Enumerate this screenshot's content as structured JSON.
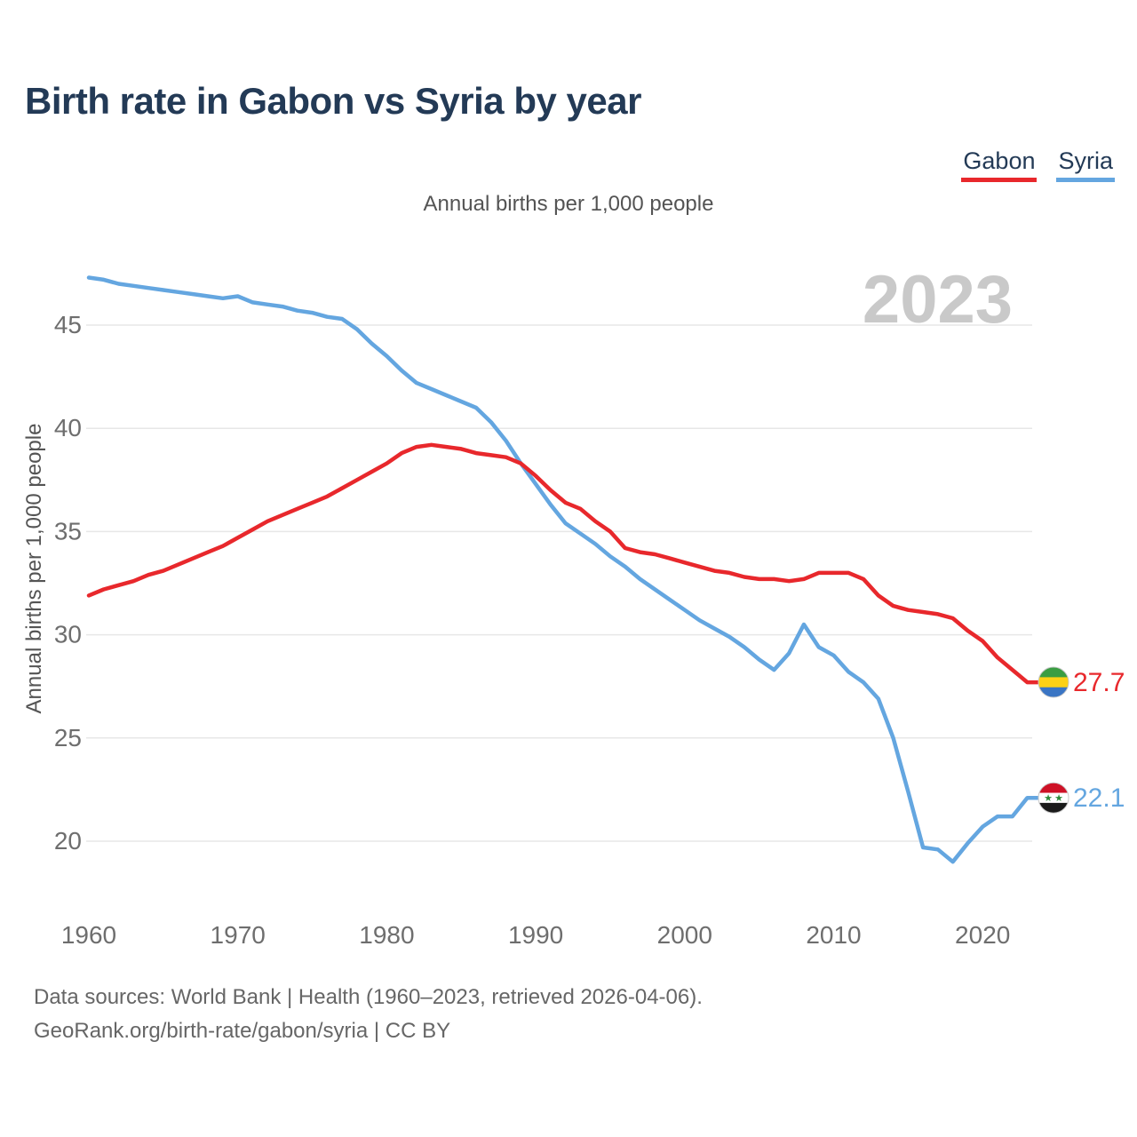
{
  "header": {
    "title": "Birth rate in Gabon vs Syria by year"
  },
  "legend": [
    {
      "label": "Gabon",
      "color": "#e8282c"
    },
    {
      "label": "Syria",
      "color": "#64a6e0"
    }
  ],
  "chart": {
    "subtitle": "Annual births per 1,000 people",
    "watermark": "2023"
  },
  "chart_data": {
    "type": "line",
    "title": "Birth rate in Gabon vs Syria by year",
    "subtitle": "Annual births per 1,000 people",
    "ylabel": "Annual births per 1,000 people",
    "xlabel": "",
    "grid": true,
    "legend_position": "top-right",
    "watermark": "2023",
    "ylim": [
      15,
      49.5
    ],
    "yticks": [
      20,
      25,
      30,
      35,
      40,
      45
    ],
    "xticks": [
      1960,
      1970,
      1980,
      1990,
      2000,
      2010,
      2020
    ],
    "x": [
      1960,
      1961,
      1962,
      1963,
      1964,
      1965,
      1966,
      1967,
      1968,
      1969,
      1970,
      1971,
      1972,
      1973,
      1974,
      1975,
      1976,
      1977,
      1978,
      1979,
      1980,
      1981,
      1982,
      1983,
      1984,
      1985,
      1986,
      1987,
      1988,
      1989,
      1990,
      1991,
      1992,
      1993,
      1994,
      1995,
      1996,
      1997,
      1998,
      1999,
      2000,
      2001,
      2002,
      2003,
      2004,
      2005,
      2006,
      2007,
      2008,
      2009,
      2010,
      2011,
      2012,
      2013,
      2014,
      2015,
      2016,
      2017,
      2018,
      2019,
      2020,
      2021,
      2022,
      2023
    ],
    "series": [
      {
        "name": "Gabon",
        "color": "#e8282c",
        "end_label": "27.7",
        "flag": {
          "type": "stripes",
          "colors": [
            "#3a9d42",
            "#fcd116",
            "#3a75c4"
          ]
        },
        "values": [
          31.9,
          32.2,
          32.4,
          32.6,
          32.9,
          33.1,
          33.4,
          33.7,
          34.0,
          34.3,
          34.7,
          35.1,
          35.5,
          35.8,
          36.1,
          36.4,
          36.7,
          37.1,
          37.5,
          37.9,
          38.3,
          38.8,
          39.1,
          39.2,
          39.1,
          39.0,
          38.8,
          38.7,
          38.6,
          38.3,
          37.7,
          37.0,
          36.4,
          36.1,
          35.5,
          35.0,
          34.2,
          34.0,
          33.9,
          33.7,
          33.5,
          33.3,
          33.1,
          33.0,
          32.8,
          32.7,
          32.7,
          32.6,
          32.7,
          33.0,
          33.0,
          33.0,
          32.7,
          31.9,
          31.4,
          31.2,
          31.1,
          31.0,
          30.8,
          30.2,
          29.7,
          28.9,
          28.3,
          27.7
        ]
      },
      {
        "name": "Syria",
        "color": "#64a6e0",
        "end_label": "22.1",
        "flag": {
          "type": "stripes",
          "colors": [
            "#ce1126",
            "#ffffff",
            "#1a1a1a"
          ],
          "stars": "#2e8b3a",
          "star_count": 2
        },
        "values": [
          47.3,
          47.2,
          47.0,
          46.9,
          46.8,
          46.7,
          46.6,
          46.5,
          46.4,
          46.3,
          46.4,
          46.1,
          46.0,
          45.9,
          45.7,
          45.6,
          45.4,
          45.3,
          44.8,
          44.1,
          43.5,
          42.8,
          42.2,
          41.9,
          41.6,
          41.3,
          41.0,
          40.3,
          39.4,
          38.3,
          37.3,
          36.3,
          35.4,
          34.9,
          34.4,
          33.8,
          33.3,
          32.7,
          32.2,
          31.7,
          31.2,
          30.7,
          30.3,
          29.9,
          29.4,
          28.8,
          28.3,
          29.1,
          30.5,
          29.4,
          29.0,
          28.2,
          27.7,
          26.9,
          25.0,
          22.4,
          19.7,
          19.6,
          19.0,
          19.9,
          20.7,
          21.2,
          21.2,
          22.1
        ]
      }
    ]
  },
  "footer": {
    "line1": "Data sources: World Bank | Health (1960–2023, retrieved 2026-04-06).",
    "line2": "GeoRank.org/birth-rate/gabon/syria | CC BY"
  },
  "colors": {
    "title": "#233a56",
    "tick_label": "#6e6e6e",
    "grid": "#e7e7e7",
    "watermark": "#c9c9c9",
    "muted_text": "#545454"
  }
}
